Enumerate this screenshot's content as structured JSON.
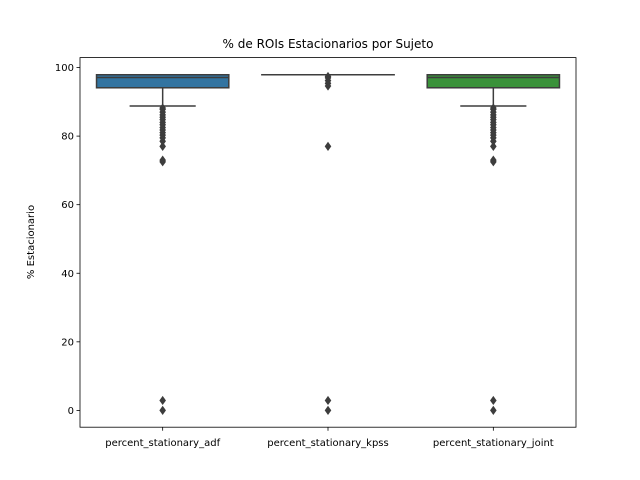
{
  "chart_data": {
    "type": "box",
    "title": "% de ROIs Estacionarios por Sujeto",
    "xlabel": "",
    "ylabel": "% Estacionario",
    "ylim": [
      -4.9,
      102.9
    ],
    "yticks": [
      0,
      20,
      40,
      60,
      80,
      100
    ],
    "grid": false,
    "legend": "none",
    "categories": [
      "percent_stationary_adf",
      "percent_stationary_kpss",
      "percent_stationary_joint"
    ],
    "boxes": [
      {
        "category": "percent_stationary_adf",
        "color": "#3274a1",
        "q1": 94.1,
        "median": 97.1,
        "q3": 97.9,
        "whisker_low": 88.8,
        "whisker_high": 97.9,
        "fliers": [
          0.0,
          2.9,
          72.5,
          73.0,
          77.0,
          78.5,
          79.5,
          80.3,
          81.0,
          81.8,
          82.5,
          83.3,
          84.0,
          84.8,
          85.5,
          86.2,
          87.0,
          87.8,
          88.2
        ]
      },
      {
        "category": "percent_stationary_kpss",
        "color": "#e1812c",
        "q1": 97.9,
        "median": 97.9,
        "q3": 97.9,
        "whisker_low": 97.9,
        "whisker_high": 97.9,
        "fliers": [
          0.0,
          2.9,
          77.0,
          94.6,
          95.4,
          96.2,
          97.0,
          97.4
        ]
      },
      {
        "category": "percent_stationary_joint",
        "color": "#3a923a",
        "q1": 94.1,
        "median": 97.1,
        "q3": 97.9,
        "whisker_low": 88.8,
        "whisker_high": 97.9,
        "fliers": [
          0.0,
          2.9,
          72.5,
          73.0,
          77.0,
          78.5,
          79.5,
          80.3,
          81.0,
          81.8,
          82.5,
          83.3,
          84.0,
          84.8,
          85.5,
          86.2,
          87.0,
          87.8,
          88.2
        ]
      }
    ],
    "line_color": "#3d3d3d",
    "flier_color": "#3d3d3d"
  }
}
